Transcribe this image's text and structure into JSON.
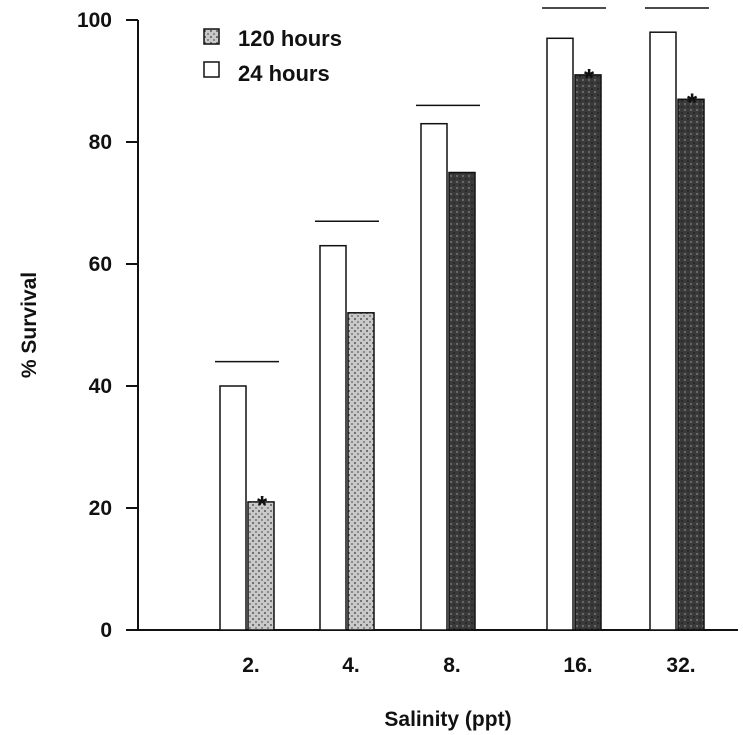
{
  "chart_data": {
    "type": "bar",
    "title": "",
    "xlabel": "Salinity (ppt)",
    "ylabel": "% Survival",
    "ylim": [
      0,
      100
    ],
    "yticks": [
      "0",
      "20",
      "40",
      "60",
      "80",
      "100"
    ],
    "categories": [
      "2.",
      "4.",
      "8.",
      "16.",
      "32."
    ],
    "series": [
      {
        "name": "24 hours",
        "values": [
          40,
          63,
          83,
          97,
          98
        ],
        "color": "#ffffff"
      },
      {
        "name": "120 hours",
        "values": [
          21,
          52,
          75,
          91,
          87
        ],
        "color": "#2a2a2a"
      }
    ],
    "significance_marker": "*",
    "significant_120h": [
      true,
      false,
      false,
      true,
      true
    ],
    "bracket_values": [
      44,
      67,
      86,
      103,
      103
    ],
    "grid": false,
    "legend_position": "top-left"
  }
}
